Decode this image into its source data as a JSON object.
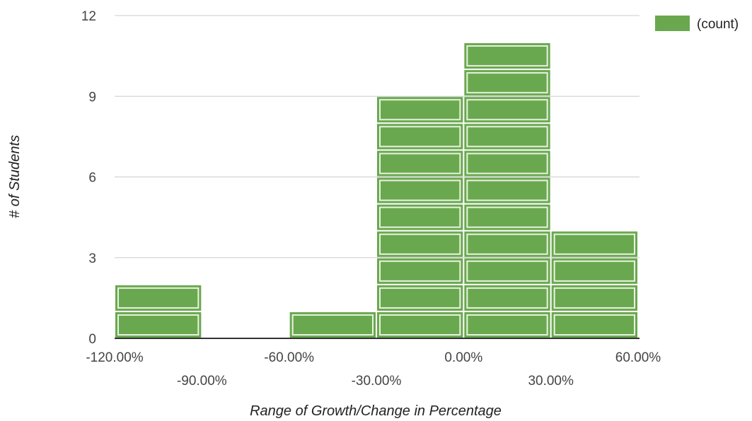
{
  "chart_data": {
    "type": "bar",
    "subtype": "histogram",
    "title": "",
    "xlabel": "Range of Growth/Change in Percentage",
    "ylabel": "# of Students",
    "ylim": [
      0,
      12
    ],
    "yticks": [
      0,
      3,
      6,
      9,
      12
    ],
    "xlim": [
      -120,
      60
    ],
    "xticks": [
      {
        "value": -120,
        "label": "-120.00%"
      },
      {
        "value": -90,
        "label": "-90.00%"
      },
      {
        "value": -60,
        "label": "-60.00%"
      },
      {
        "value": -30,
        "label": "-30.00%"
      },
      {
        "value": 0,
        "label": "0.00%"
      },
      {
        "value": 30,
        "label": "30.00%"
      },
      {
        "value": 60,
        "label": "60.00%"
      }
    ],
    "bins": [
      {
        "from": -120,
        "to": -90,
        "count": 2
      },
      {
        "from": -90,
        "to": -60,
        "count": 0
      },
      {
        "from": -60,
        "to": -30,
        "count": 1
      },
      {
        "from": -30,
        "to": 0,
        "count": 9
      },
      {
        "from": 0,
        "to": 30,
        "count": 11
      },
      {
        "from": 30,
        "to": 60,
        "count": 4
      }
    ],
    "series": [
      {
        "name": "(count)",
        "color": "#6aa84f"
      }
    ],
    "grid": true,
    "legend": {
      "position": "top-right",
      "label": "(count)"
    }
  }
}
